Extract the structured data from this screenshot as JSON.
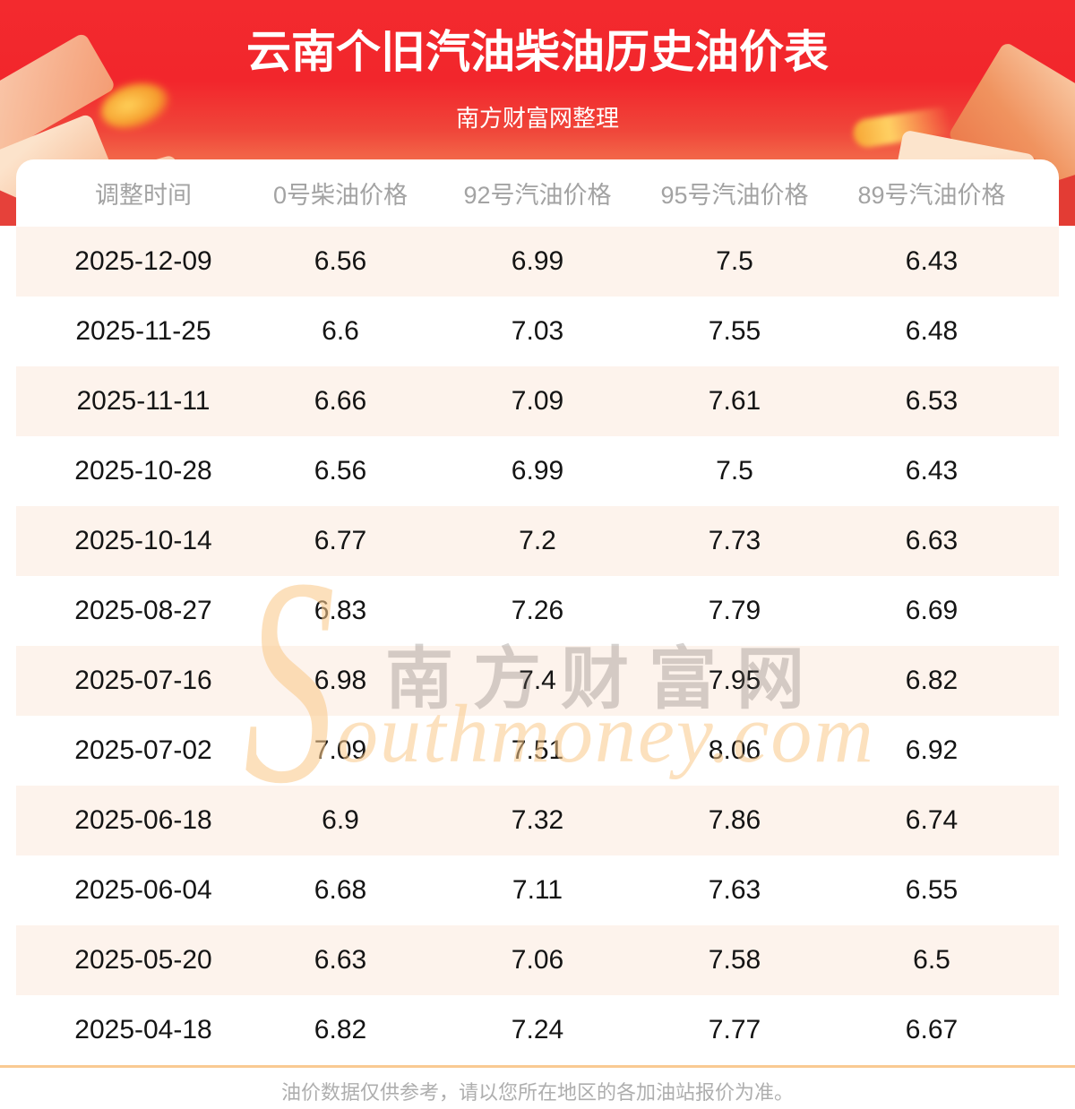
{
  "header": {
    "title": "云南个旧汽油柴油历史油价表",
    "subtitle": "南方财富网整理"
  },
  "table": {
    "columns": [
      "调整时间",
      "0号柴油价格",
      "92号汽油价格",
      "95号汽油价格",
      "89号汽油价格"
    ],
    "rows": [
      [
        "2025-12-09",
        "6.56",
        "6.99",
        "7.5",
        "6.43"
      ],
      [
        "2025-11-25",
        "6.6",
        "7.03",
        "7.55",
        "6.48"
      ],
      [
        "2025-11-11",
        "6.66",
        "7.09",
        "7.61",
        "6.53"
      ],
      [
        "2025-10-28",
        "6.56",
        "6.99",
        "7.5",
        "6.43"
      ],
      [
        "2025-10-14",
        "6.77",
        "7.2",
        "7.73",
        "6.63"
      ],
      [
        "2025-08-27",
        "6.83",
        "7.26",
        "7.79",
        "6.69"
      ],
      [
        "2025-07-16",
        "6.98",
        "7.4",
        "7.95",
        "6.82"
      ],
      [
        "2025-07-02",
        "7.09",
        "7.51",
        "8.06",
        "6.92"
      ],
      [
        "2025-06-18",
        "6.9",
        "7.32",
        "7.86",
        "6.74"
      ],
      [
        "2025-06-04",
        "6.68",
        "7.11",
        "7.63",
        "6.55"
      ],
      [
        "2025-05-20",
        "6.63",
        "7.06",
        "7.58",
        "6.5"
      ],
      [
        "2025-04-18",
        "6.82",
        "7.24",
        "7.77",
        "6.67"
      ]
    ]
  },
  "watermark": {
    "initial": "S",
    "cjk": "南方财富网",
    "latin": "outhmoney.com"
  },
  "footer": {
    "disclaimer": "油价数据仅供参考，请以您所在地区的各加油站报价为准。"
  },
  "colors": {
    "banner_red_top": "#f2262c",
    "banner_peach_bottom": "#f1b287",
    "row_stripe": "#fdf3ec",
    "divider_line": "#f9ca92",
    "header_text_gray": "#a3a3a3",
    "footer_text_gray": "#aeaeae"
  }
}
